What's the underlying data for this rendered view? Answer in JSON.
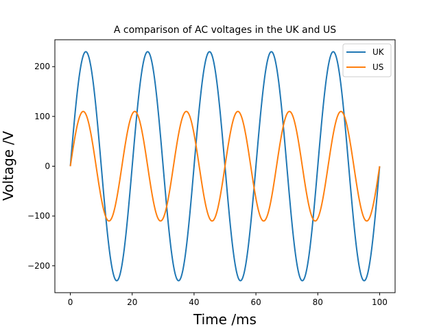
{
  "chart_data": {
    "type": "line",
    "title": "A comparison of AC voltages in the UK and US",
    "xlabel": "Time /ms",
    "ylabel": "Voltage /V",
    "xlim": [
      -5,
      105
    ],
    "ylim": [
      -254,
      254
    ],
    "xticks": [
      0,
      20,
      40,
      60,
      80,
      100
    ],
    "xtick_labels": [
      "0",
      "20",
      "40",
      "60",
      "80",
      "100"
    ],
    "yticks": [
      -200,
      -100,
      0,
      100,
      200
    ],
    "ytick_labels": [
      "−200",
      "−100",
      "0",
      "100",
      "200"
    ],
    "grid": false,
    "legend_position": "top-right",
    "x_range": [
      0,
      100
    ],
    "series": [
      {
        "name": "UK",
        "color": "#1f77b4",
        "amplitude_v": 230,
        "frequency_hz": 50
      },
      {
        "name": "US",
        "color": "#ff7f0e",
        "amplitude_v": 110,
        "frequency_hz": 60
      }
    ]
  }
}
